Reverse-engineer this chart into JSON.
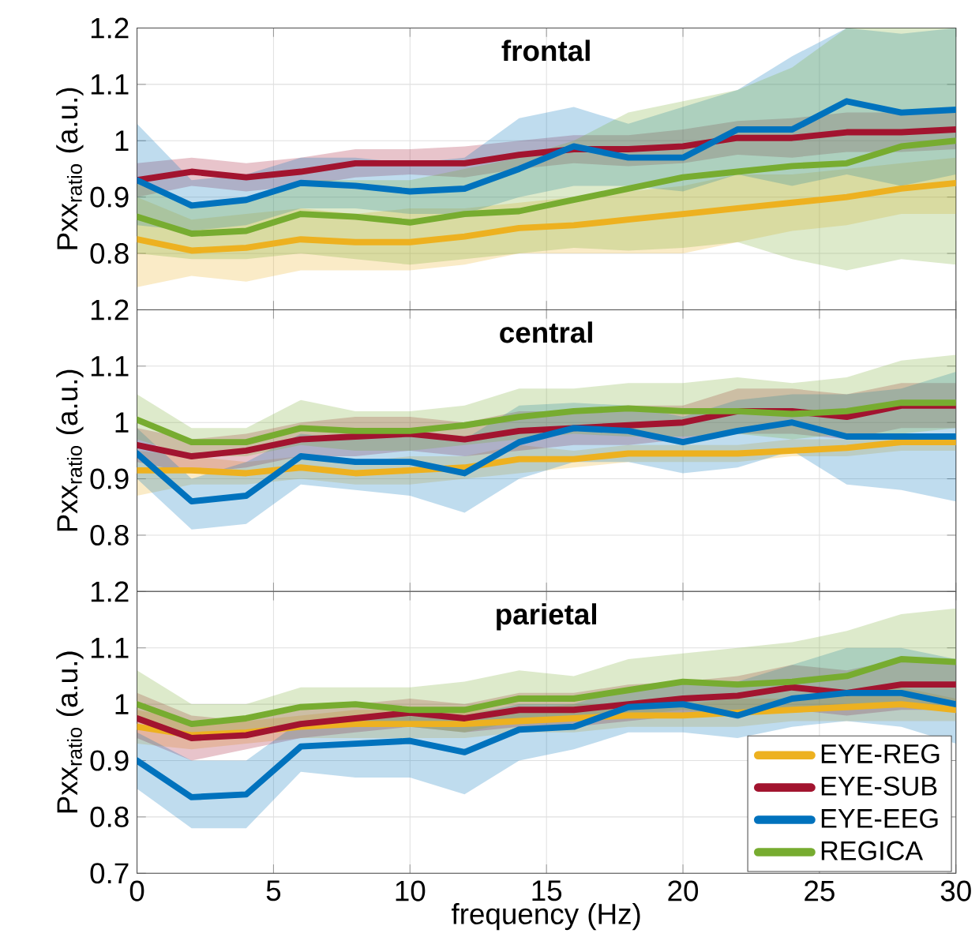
{
  "chart_data": [
    {
      "type": "line",
      "title": "frontal",
      "ylabel": "Pxx$_{ratio}$ (a.u.)",
      "x": [
        0,
        2,
        4,
        6,
        8,
        10,
        12,
        14,
        16,
        18,
        20,
        22,
        24,
        26,
        28,
        30
      ],
      "xlim": [
        0,
        30
      ],
      "ylim": [
        0.7,
        1.2
      ],
      "xticks": [
        0,
        5,
        10,
        15,
        20,
        25,
        30
      ],
      "yticks": [
        0.8,
        0.9,
        1,
        1.1,
        1.2
      ],
      "grid": true,
      "tick_labels": "y",
      "line_style": "solid",
      "series": [
        {
          "color": "#edb120",
          "values": [
            0.825,
            0.805,
            0.81,
            0.825,
            0.82,
            0.82,
            0.83,
            0.845,
            0.85,
            0.86,
            0.87,
            0.88,
            0.89,
            0.9,
            0.915,
            0.925
          ],
          "lower": [
            0.74,
            0.76,
            0.75,
            0.77,
            0.77,
            0.77,
            0.78,
            0.8,
            0.8,
            0.8,
            0.8,
            0.82,
            0.84,
            0.85,
            0.87,
            0.87
          ],
          "upper": [
            0.9,
            0.86,
            0.87,
            0.88,
            0.87,
            0.88,
            0.88,
            0.89,
            0.9,
            0.91,
            0.92,
            0.94,
            0.94,
            0.95,
            0.96,
            0.97
          ]
        },
        {
          "color": "#a2142f",
          "values": [
            0.93,
            0.945,
            0.935,
            0.945,
            0.96,
            0.96,
            0.96,
            0.975,
            0.985,
            0.985,
            0.99,
            1.005,
            1.005,
            1.015,
            1.015,
            1.02
          ],
          "lower": [
            0.9,
            0.92,
            0.91,
            0.92,
            0.935,
            0.94,
            0.935,
            0.95,
            0.96,
            0.955,
            0.96,
            0.975,
            0.97,
            0.98,
            0.98,
            0.985
          ],
          "upper": [
            0.96,
            0.97,
            0.96,
            0.97,
            0.985,
            0.985,
            0.99,
            1.0,
            1.01,
            1.01,
            1.02,
            1.035,
            1.04,
            1.05,
            1.05,
            1.055
          ]
        },
        {
          "color": "#0072bd",
          "values": [
            0.93,
            0.885,
            0.895,
            0.925,
            0.92,
            0.91,
            0.915,
            0.95,
            0.99,
            0.97,
            0.97,
            1.02,
            1.02,
            1.07,
            1.05,
            1.055
          ],
          "lower": [
            0.85,
            0.84,
            0.85,
            0.88,
            0.88,
            0.87,
            0.87,
            0.9,
            0.92,
            0.92,
            0.91,
            0.94,
            0.92,
            0.94,
            0.92,
            0.94
          ],
          "upper": [
            1.03,
            0.93,
            0.94,
            0.97,
            0.97,
            0.96,
            0.97,
            1.04,
            1.06,
            1.03,
            1.06,
            1.09,
            1.15,
            1.2,
            1.19,
            1.2
          ]
        },
        {
          "color": "#77ac30",
          "values": [
            0.865,
            0.835,
            0.84,
            0.87,
            0.865,
            0.855,
            0.87,
            0.875,
            0.895,
            0.915,
            0.935,
            0.945,
            0.955,
            0.96,
            0.99,
            1.0
          ],
          "lower": [
            0.8,
            0.79,
            0.79,
            0.8,
            0.79,
            0.78,
            0.79,
            0.8,
            0.81,
            0.805,
            0.81,
            0.82,
            0.79,
            0.77,
            0.79,
            0.78
          ],
          "upper": [
            0.93,
            0.89,
            0.9,
            0.93,
            0.93,
            0.93,
            0.95,
            0.97,
            1.0,
            1.05,
            1.07,
            1.09,
            1.13,
            1.2,
            1.2,
            1.2
          ]
        }
      ]
    },
    {
      "type": "line",
      "title": "central",
      "ylabel": "Pxx$_{ratio}$ (a.u.)",
      "x": [
        0,
        2,
        4,
        6,
        8,
        10,
        12,
        14,
        16,
        18,
        20,
        22,
        24,
        26,
        28,
        30
      ],
      "xlim": [
        0,
        30
      ],
      "ylim": [
        0.7,
        1.2
      ],
      "xticks": [
        0,
        5,
        10,
        15,
        20,
        25,
        30
      ],
      "yticks": [
        0.8,
        0.9,
        1,
        1.1,
        1.2
      ],
      "grid": true,
      "tick_labels": "y",
      "line_style": "solid",
      "series": [
        {
          "color": "#edb120",
          "values": [
            0.915,
            0.915,
            0.91,
            0.92,
            0.91,
            0.915,
            0.92,
            0.935,
            0.935,
            0.945,
            0.945,
            0.945,
            0.95,
            0.955,
            0.965,
            0.965
          ],
          "lower": [
            0.87,
            0.89,
            0.89,
            0.9,
            0.89,
            0.89,
            0.9,
            0.91,
            0.92,
            0.93,
            0.93,
            0.93,
            0.94,
            0.94,
            0.95,
            0.95
          ],
          "upper": [
            0.95,
            0.94,
            0.93,
            0.94,
            0.93,
            0.94,
            0.94,
            0.96,
            0.95,
            0.96,
            0.96,
            0.96,
            0.97,
            0.97,
            0.98,
            0.98
          ]
        },
        {
          "color": "#a2142f",
          "values": [
            0.96,
            0.94,
            0.95,
            0.97,
            0.975,
            0.98,
            0.97,
            0.985,
            0.99,
            0.995,
            1.0,
            1.02,
            1.02,
            1.01,
            1.03,
            1.03
          ],
          "lower": [
            0.93,
            0.91,
            0.92,
            0.94,
            0.94,
            0.95,
            0.94,
            0.95,
            0.96,
            0.96,
            0.97,
            0.98,
            0.98,
            0.97,
            0.99,
            0.99
          ],
          "upper": [
            0.99,
            0.97,
            0.98,
            1.0,
            1.01,
            1.01,
            1.0,
            1.02,
            1.02,
            1.03,
            1.03,
            1.06,
            1.06,
            1.05,
            1.07,
            1.07
          ]
        },
        {
          "color": "#0072bd",
          "values": [
            0.945,
            0.86,
            0.87,
            0.94,
            0.93,
            0.93,
            0.91,
            0.965,
            0.99,
            0.985,
            0.965,
            0.985,
            1.0,
            0.975,
            0.975,
            0.975
          ],
          "lower": [
            0.9,
            0.81,
            0.82,
            0.89,
            0.88,
            0.87,
            0.84,
            0.9,
            0.93,
            0.93,
            0.91,
            0.92,
            0.95,
            0.89,
            0.88,
            0.86
          ],
          "upper": [
            0.99,
            0.9,
            0.93,
            0.98,
            0.97,
            0.98,
            0.97,
            1.03,
            1.035,
            1.03,
            1.01,
            1.04,
            1.05,
            1.05,
            1.06,
            1.09
          ]
        },
        {
          "color": "#77ac30",
          "values": [
            1.005,
            0.965,
            0.965,
            0.99,
            0.985,
            0.985,
            0.995,
            1.01,
            1.02,
            1.025,
            1.02,
            1.02,
            1.015,
            1.02,
            1.035,
            1.035
          ],
          "lower": [
            0.97,
            0.94,
            0.94,
            0.96,
            0.95,
            0.95,
            0.96,
            0.97,
            0.98,
            0.975,
            0.975,
            0.98,
            0.97,
            0.98,
            0.98,
            0.99
          ],
          "upper": [
            1.05,
            0.99,
            0.99,
            1.04,
            1.02,
            1.02,
            1.03,
            1.06,
            1.06,
            1.07,
            1.07,
            1.08,
            1.07,
            1.08,
            1.11,
            1.12
          ]
        }
      ]
    },
    {
      "type": "line",
      "title": "parietal",
      "xlabel": "frequency (Hz)",
      "ylabel": "Pxx$_{ratio}$ (a.u.)",
      "x": [
        0,
        2,
        4,
        6,
        8,
        10,
        12,
        14,
        16,
        18,
        20,
        22,
        24,
        26,
        28,
        30
      ],
      "xlim": [
        0,
        30
      ],
      "ylim": [
        0.7,
        1.2
      ],
      "xticks": [
        0,
        5,
        10,
        15,
        20,
        25,
        30
      ],
      "yticks": [
        0.7,
        0.8,
        0.9,
        1,
        1.1,
        1.2
      ],
      "grid": true,
      "legend": "bottom right",
      "line_style": "solid",
      "series": [
        {
          "name": "EYE-REG",
          "color": "#edb120",
          "values": [
            0.96,
            0.945,
            0.95,
            0.96,
            0.965,
            0.965,
            0.965,
            0.97,
            0.975,
            0.98,
            0.98,
            0.985,
            0.99,
            0.995,
            1.0,
            0.99
          ],
          "lower": [
            0.93,
            0.92,
            0.93,
            0.94,
            0.94,
            0.94,
            0.94,
            0.95,
            0.95,
            0.96,
            0.96,
            0.96,
            0.97,
            0.97,
            0.97,
            0.97
          ],
          "upper": [
            0.99,
            0.97,
            0.97,
            0.98,
            0.99,
            0.99,
            0.99,
            0.99,
            1.0,
            1.0,
            1.0,
            1.01,
            1.01,
            1.02,
            1.03,
            1.01
          ]
        },
        {
          "name": "EYE-SUB",
          "color": "#a2142f",
          "values": [
            0.975,
            0.94,
            0.945,
            0.965,
            0.975,
            0.985,
            0.975,
            0.99,
            0.99,
            1.0,
            1.01,
            1.015,
            1.03,
            1.02,
            1.035,
            1.035
          ],
          "lower": [
            0.94,
            0.9,
            0.92,
            0.94,
            0.95,
            0.96,
            0.95,
            0.96,
            0.96,
            0.97,
            0.98,
            0.98,
            0.99,
            0.98,
            0.99,
            0.99
          ],
          "upper": [
            1.02,
            0.98,
            0.97,
            0.99,
            1.0,
            1.01,
            1.0,
            1.02,
            1.02,
            1.035,
            1.04,
            1.05,
            1.07,
            1.06,
            1.08,
            1.08
          ]
        },
        {
          "name": "EYE-EEG",
          "color": "#0072bd",
          "values": [
            0.9,
            0.835,
            0.84,
            0.925,
            0.93,
            0.935,
            0.915,
            0.955,
            0.96,
            0.995,
            1.0,
            0.98,
            1.01,
            1.02,
            1.02,
            1.0
          ],
          "lower": [
            0.85,
            0.78,
            0.78,
            0.88,
            0.87,
            0.87,
            0.84,
            0.9,
            0.92,
            0.95,
            0.95,
            0.94,
            0.96,
            0.97,
            0.96,
            0.93
          ],
          "upper": [
            0.95,
            0.9,
            0.9,
            0.97,
            0.98,
            0.99,
            0.98,
            1.0,
            1.0,
            1.03,
            1.04,
            1.04,
            1.07,
            1.1,
            1.1,
            1.08
          ]
        },
        {
          "name": "REGICA",
          "color": "#77ac30",
          "values": [
            1.0,
            0.965,
            0.975,
            0.995,
            1.0,
            0.99,
            0.99,
            1.01,
            1.01,
            1.025,
            1.04,
            1.035,
            1.04,
            1.05,
            1.08,
            1.075
          ],
          "lower": [
            0.97,
            0.94,
            0.95,
            0.96,
            0.96,
            0.96,
            0.95,
            0.97,
            0.97,
            0.98,
            0.99,
            0.98,
            0.99,
            1.0,
            1.0,
            0.99
          ],
          "upper": [
            1.06,
            1.0,
            1.0,
            1.03,
            1.03,
            1.03,
            1.04,
            1.06,
            1.05,
            1.08,
            1.09,
            1.1,
            1.11,
            1.13,
            1.16,
            1.17
          ]
        }
      ]
    }
  ]
}
